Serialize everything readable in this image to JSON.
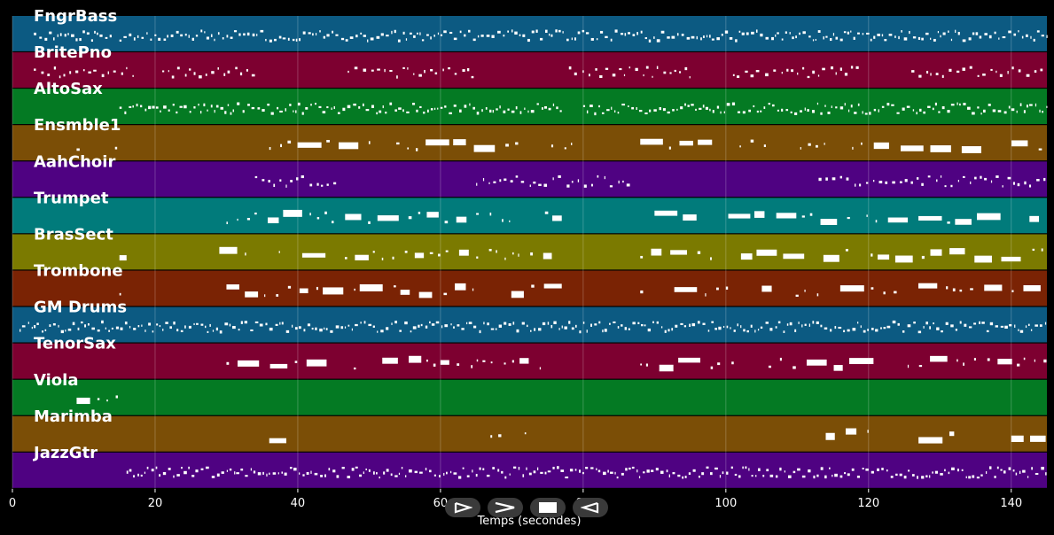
{
  "chart_data": {
    "type": "piano-roll",
    "title": "",
    "xlabel": "Temps (secondes)",
    "ylabel": "",
    "xlim": [
      0,
      145
    ],
    "xticks": [
      0,
      20,
      40,
      60,
      80,
      100,
      120,
      140
    ],
    "grid": true,
    "series": [
      {
        "name": "FngrBass",
        "color": "#0c5a82",
        "density": "dense",
        "activity": [
          [
            3,
            14
          ],
          [
            15,
            145
          ]
        ]
      },
      {
        "name": "BritePno",
        "color": "#7d0030",
        "density": "medium",
        "activity": [
          [
            3,
            17
          ],
          [
            21,
            34
          ],
          [
            47,
            65
          ],
          [
            78,
            95
          ],
          [
            101,
            119
          ],
          [
            126,
            145
          ]
        ]
      },
      {
        "name": "AltoSax",
        "color": "#047a23",
        "density": "dense",
        "activity": [
          [
            15,
            77
          ],
          [
            80,
            145
          ]
        ]
      },
      {
        "name": "Ensmble1",
        "color": "#7b4e06",
        "density": "sparse",
        "activity": [
          [
            9,
            15
          ],
          [
            36,
            81
          ],
          [
            88,
            145
          ]
        ]
      },
      {
        "name": "AahChoir",
        "color": "#4f0282",
        "density": "medium",
        "activity": [
          [
            34,
            46
          ],
          [
            65,
            87
          ],
          [
            113,
            145
          ]
        ]
      },
      {
        "name": "Trumpet",
        "color": "#017b7b",
        "density": "sparse",
        "activity": [
          [
            30,
            77
          ],
          [
            90,
            145
          ]
        ]
      },
      {
        "name": "BrasSect",
        "color": "#7b7a00",
        "density": "sparse",
        "activity": [
          [
            15,
            16
          ],
          [
            29,
            78
          ],
          [
            88,
            145
          ]
        ]
      },
      {
        "name": "Trombone",
        "color": "#7a2304",
        "density": "sparse",
        "activity": [
          [
            15,
            16
          ],
          [
            30,
            77
          ],
          [
            88,
            145
          ]
        ]
      },
      {
        "name": "GM Drums",
        "color": "#0c5a82",
        "density": "dense",
        "activity": [
          [
            1,
            145
          ]
        ]
      },
      {
        "name": "TenorSax",
        "color": "#7d0030",
        "density": "sparse",
        "activity": [
          [
            30,
            77
          ],
          [
            88,
            145
          ]
        ]
      },
      {
        "name": "Viola",
        "color": "#047a23",
        "density": "sparse",
        "activity": [
          [
            9,
            15
          ]
        ]
      },
      {
        "name": "Marimba",
        "color": "#7b4e06",
        "density": "sparse",
        "activity": [
          [
            36,
            41
          ],
          [
            67,
            72
          ],
          [
            114,
            120
          ],
          [
            127,
            132
          ],
          [
            140,
            145
          ]
        ]
      },
      {
        "name": "JazzGtr",
        "color": "#4f0282",
        "density": "dense",
        "activity": [
          [
            16,
            145
          ]
        ]
      }
    ]
  },
  "controls": [
    {
      "name": "play-button",
      "icon": "play-icon"
    },
    {
      "name": "forward-button",
      "icon": "forward-icon"
    },
    {
      "name": "stop-button",
      "icon": "stop-icon"
    },
    {
      "name": "back-button",
      "icon": "back-icon"
    }
  ]
}
